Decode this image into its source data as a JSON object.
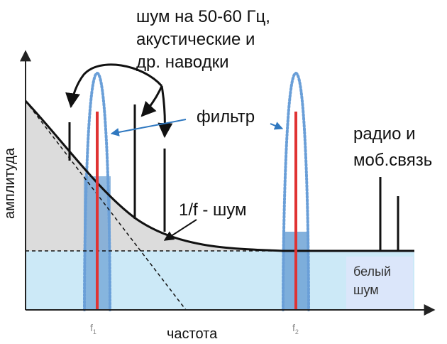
{
  "labels": {
    "interference": [
      "шум на 50-60 Гц,",
      "акустические и",
      "др. наводки"
    ],
    "filter": "фильтр",
    "radio": [
      "радио и",
      "моб.связь"
    ],
    "pink_noise": "1/f - шум",
    "white_noise": [
      "белый",
      "шум"
    ],
    "y_axis": "амплитуда",
    "x_axis": "частота",
    "f1": "f",
    "f1_sub": "1",
    "f2": "f",
    "f2_sub": "2"
  },
  "colors": {
    "white_noise_fill": "#cce9f7",
    "white_noise_box": "#dbe6fa",
    "pink_noise_fill": "#dcdcdc",
    "filter_band": "#6fa3d6",
    "filter_dots": "#6a9fd8",
    "signal": "#e03333",
    "arrow_blue": "#2f78c0",
    "axis": "#222222"
  }
}
